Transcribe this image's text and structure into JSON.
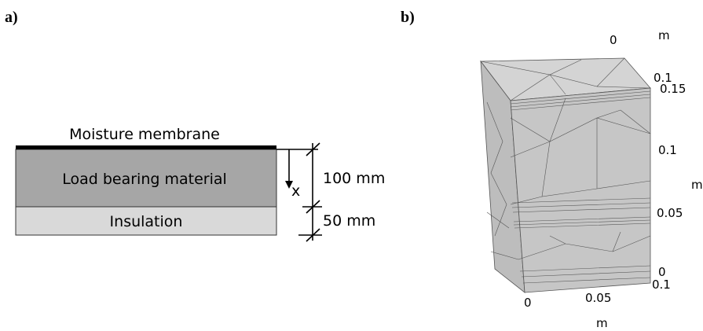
{
  "panel_a": {
    "label": "a)",
    "layers": [
      "Moisture membrane",
      "Load bearing material",
      "Insulation"
    ],
    "axis_label": "x",
    "dimensions": [
      "100 mm",
      "50 mm"
    ]
  },
  "panel_b": {
    "label": "b)",
    "top_axis": {
      "unit": "m",
      "ticks": [
        "0",
        "0.1"
      ]
    },
    "vertical_axis": {
      "unit": "m",
      "ticks": [
        "0.15",
        "0.1",
        "0.05",
        "0"
      ]
    },
    "bottom_axis": {
      "unit": "m",
      "ticks": [
        "0",
        "0.05",
        "0.1"
      ]
    }
  }
}
